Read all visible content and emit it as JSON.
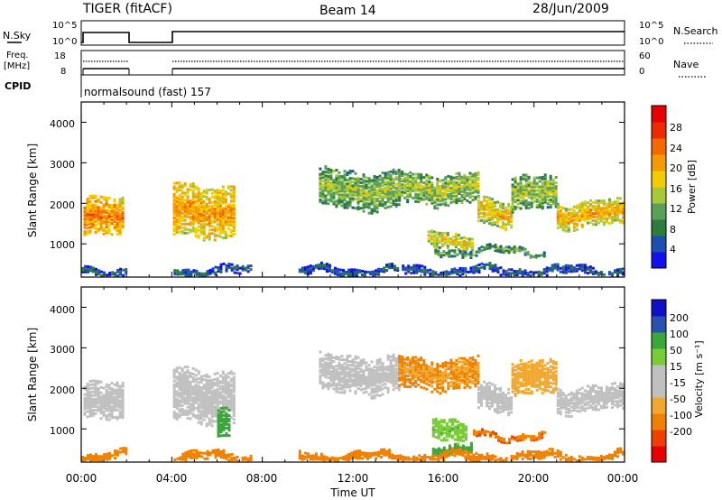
{
  "header": {
    "station": "TIGER (fitACF)",
    "beam": "Beam 14",
    "date": "28/Jun/2009"
  },
  "side_labels": {
    "nsky": "N.Sky",
    "nsky_top": "10^5",
    "nsky_bottom": "10^0",
    "nsearch": "N.Search",
    "nsearch_top": "10^5",
    "nsearch_bottom": "10^0",
    "freq": "Freq.",
    "freq_unit": "[MHz]",
    "freq_top": "18",
    "freq_bottom": "8",
    "nave": "Nave",
    "nave_top": "60",
    "nave_bottom": "0",
    "cpid": "CPID",
    "cpid_value": "normalsound (fast) 157"
  },
  "colors": {
    "power_scale": [
      "#1111ee",
      "#1e4fb0",
      "#2e7c3e",
      "#5aa05a",
      "#a8c83a",
      "#f2cc00",
      "#f59a00",
      "#f46a00",
      "#ee2a00",
      "#e60000"
    ],
    "velocity_scale": [
      "#e80000",
      "#f04000",
      "#f08000",
      "#f0a830",
      "#c0c0c0",
      "#c0c0c0",
      "#78cc36",
      "#38a838",
      "#2a50b0",
      "#1010c8"
    ]
  },
  "chart_data": [
    {
      "type": "heatmap",
      "title": "",
      "xlabel": "Time UT",
      "ylabel": "Slant Range [km]",
      "xlim": [
        "00:00",
        "24:00"
      ],
      "ylim": [
        180,
        4500
      ],
      "x_ticks": [
        "00:00",
        "04:00",
        "08:00",
        "12:00",
        "16:00",
        "20:00",
        "00:00"
      ],
      "y_ticks": [
        "1000",
        "2000",
        "3000",
        "4000"
      ],
      "colorbar_label": "Power [dB]",
      "colorbar_ticks": [
        "4",
        "8",
        "12",
        "16",
        "20",
        "24",
        "28"
      ],
      "colorbar_range": [
        0,
        32
      ],
      "data_gaps": [
        [
          "02:00",
          "04:00"
        ],
        [
          "07:30",
          "09:30"
        ]
      ],
      "echo_bands": [
        {
          "start": 0.1,
          "end": 1.9,
          "center_km": 1600,
          "halfwidth_km": 450,
          "level": 24
        },
        {
          "start": 4.05,
          "end": 6.8,
          "center_km": 1800,
          "halfwidth_km": 650,
          "level": 22
        },
        {
          "start": 10.5,
          "end": 14.0,
          "center_km": 2300,
          "halfwidth_km": 450,
          "level": 14
        },
        {
          "start": 14.0,
          "end": 17.5,
          "center_km": 2350,
          "halfwidth_km": 380,
          "level": 15
        },
        {
          "start": 17.5,
          "end": 19.0,
          "center_km": 1750,
          "halfwidth_km": 320,
          "level": 20
        },
        {
          "start": 19.0,
          "end": 21.0,
          "center_km": 2200,
          "halfwidth_km": 420,
          "level": 15
        },
        {
          "start": 21.0,
          "end": 23.9,
          "center_km": 1700,
          "halfwidth_km": 300,
          "level": 21
        },
        {
          "start": 15.3,
          "end": 17.3,
          "center_km": 1050,
          "halfwidth_km": 200,
          "level": 18
        },
        {
          "start": 15.6,
          "end": 20.5,
          "center_km": 780,
          "halfwidth_km": 70,
          "level": 12
        },
        {
          "start": 0.0,
          "end": 24.0,
          "center_km": 300,
          "halfwidth_km": 110,
          "level": 6
        }
      ]
    },
    {
      "type": "heatmap",
      "title": "",
      "xlabel": "Time UT",
      "ylabel": "Slant Range [km]",
      "xlim": [
        "00:00",
        "24:00"
      ],
      "ylim": [
        180,
        4500
      ],
      "x_ticks": [
        "00:00",
        "04:00",
        "08:00",
        "12:00",
        "16:00",
        "20:00",
        "00:00"
      ],
      "y_ticks": [
        "1000",
        "2000",
        "3000",
        "4000"
      ],
      "colorbar_label": "Velocity [m s⁻¹]",
      "colorbar_ticks": [
        "200",
        "100",
        "50",
        "15",
        "-15",
        "-50",
        "-100",
        "-200"
      ],
      "data_gaps": [
        [
          "02:00",
          "04:00"
        ],
        [
          "07:30",
          "09:30"
        ]
      ],
      "echo_bands": [
        {
          "start": 0.1,
          "end": 1.9,
          "center_km": 1600,
          "halfwidth_km": 450,
          "level": 0
        },
        {
          "start": 4.05,
          "end": 6.8,
          "center_km": 1800,
          "halfwidth_km": 650,
          "level": 0
        },
        {
          "start": 10.5,
          "end": 14.0,
          "center_km": 2300,
          "halfwidth_km": 450,
          "level": 0
        },
        {
          "start": 14.0,
          "end": 17.5,
          "center_km": 2350,
          "halfwidth_km": 380,
          "level": -30
        },
        {
          "start": 17.5,
          "end": 19.0,
          "center_km": 1750,
          "halfwidth_km": 320,
          "level": 0
        },
        {
          "start": 19.0,
          "end": 21.0,
          "center_km": 2200,
          "halfwidth_km": 420,
          "level": -20
        },
        {
          "start": 21.0,
          "end": 23.9,
          "center_km": 1700,
          "halfwidth_km": 300,
          "level": 0
        },
        {
          "start": 6.0,
          "end": 6.6,
          "center_km": 1200,
          "halfwidth_km": 350,
          "level": 60
        },
        {
          "start": 15.5,
          "end": 17.0,
          "center_km": 1000,
          "halfwidth_km": 250,
          "level": 30
        },
        {
          "start": 15.5,
          "end": 17.3,
          "center_km": 500,
          "halfwidth_km": 120,
          "level": 40
        },
        {
          "start": 17.3,
          "end": 20.5,
          "center_km": 800,
          "halfwidth_km": 70,
          "level": -70
        },
        {
          "start": 0.0,
          "end": 24.0,
          "center_km": 280,
          "halfwidth_km": 100,
          "level": -40
        }
      ]
    }
  ]
}
